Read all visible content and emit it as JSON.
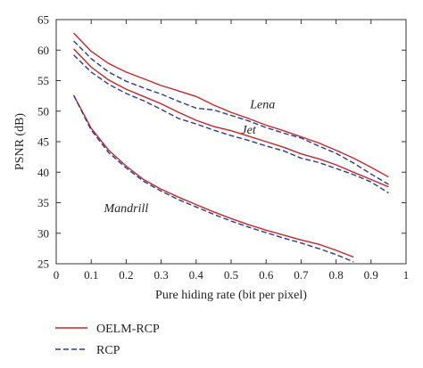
{
  "chart_data": {
    "type": "line",
    "xlabel": "Pure hiding rate (bit per pixel)",
    "ylabel": "PSNR (dB)",
    "xlim": [
      0,
      1
    ],
    "ylim": [
      25,
      65
    ],
    "xticks": [
      "0",
      "0.1",
      "0.2",
      "0.3",
      "0.4",
      "0.5",
      "0.6",
      "0.7",
      "0.8",
      "0.9",
      "1"
    ],
    "yticks": [
      "25",
      "30",
      "35",
      "40",
      "45",
      "50",
      "55",
      "60",
      "65"
    ],
    "grid": false,
    "legend_position": "bottom-left",
    "legend": [
      {
        "name": "OELM-RCP",
        "color": "#c0282d",
        "dash": "solid"
      },
      {
        "name": "RCP",
        "color": "#2b3a8f",
        "dash": "dashed"
      }
    ],
    "annotations": [
      {
        "text": "Lena",
        "x": 0.59,
        "y": 50.5
      },
      {
        "text": "Jet",
        "x": 0.55,
        "y": 46.3
      },
      {
        "text": "Mandrill",
        "x": 0.2,
        "y": 33.5
      }
    ],
    "series": [
      {
        "group": "Lena",
        "name": "OELM-RCP",
        "x": [
          0.05,
          0.1,
          0.15,
          0.2,
          0.25,
          0.3,
          0.35,
          0.4,
          0.45,
          0.5,
          0.55,
          0.6,
          0.65,
          0.7,
          0.75,
          0.8,
          0.85,
          0.9,
          0.95
        ],
        "y": [
          62.8,
          59.8,
          57.8,
          56.4,
          55.3,
          54.2,
          53.3,
          52.4,
          51.0,
          49.8,
          48.8,
          47.7,
          46.8,
          45.8,
          44.8,
          43.6,
          42.3,
          40.8,
          39.2
        ]
      },
      {
        "group": "Lena",
        "name": "RCP",
        "x": [
          0.05,
          0.1,
          0.15,
          0.2,
          0.25,
          0.3,
          0.35,
          0.4,
          0.45,
          0.5,
          0.55,
          0.6,
          0.65,
          0.7,
          0.75,
          0.8,
          0.85,
          0.9,
          0.95
        ],
        "y": [
          61.5,
          58.6,
          56.4,
          54.9,
          53.8,
          52.8,
          51.6,
          50.5,
          50.2,
          49.3,
          48.4,
          47.3,
          46.4,
          45.6,
          44.3,
          43.1,
          41.5,
          39.7,
          38.0
        ]
      },
      {
        "group": "Jet",
        "name": "OELM-RCP",
        "x": [
          0.05,
          0.1,
          0.15,
          0.2,
          0.25,
          0.3,
          0.35,
          0.4,
          0.45,
          0.5,
          0.55,
          0.6,
          0.65,
          0.7,
          0.75,
          0.8,
          0.85,
          0.9,
          0.95
        ],
        "y": [
          60.2,
          57.2,
          55.1,
          53.6,
          52.4,
          51.2,
          49.8,
          48.5,
          47.5,
          46.8,
          45.9,
          45.0,
          44.1,
          43.0,
          42.2,
          41.2,
          40.0,
          38.8,
          37.6
        ]
      },
      {
        "group": "Jet",
        "name": "RCP",
        "x": [
          0.05,
          0.1,
          0.15,
          0.2,
          0.25,
          0.3,
          0.35,
          0.4,
          0.45,
          0.5,
          0.55,
          0.6,
          0.65,
          0.7,
          0.75,
          0.8,
          0.85,
          0.9,
          0.95
        ],
        "y": [
          59.2,
          56.4,
          54.4,
          52.9,
          51.7,
          50.3,
          48.8,
          47.9,
          46.9,
          46.0,
          45.2,
          44.3,
          43.5,
          42.3,
          41.6,
          40.6,
          39.6,
          38.4,
          36.6
        ]
      },
      {
        "group": "Mandrill",
        "name": "OELM-RCP",
        "x": [
          0.05,
          0.1,
          0.15,
          0.2,
          0.25,
          0.3,
          0.35,
          0.4,
          0.45,
          0.5,
          0.55,
          0.6,
          0.65,
          0.7,
          0.75,
          0.8,
          0.85
        ],
        "y": [
          52.6,
          47.2,
          43.6,
          41.0,
          38.8,
          37.2,
          35.9,
          34.7,
          33.5,
          32.4,
          31.4,
          30.5,
          29.7,
          28.9,
          28.2,
          27.2,
          26.1
        ]
      },
      {
        "group": "Mandrill",
        "name": "RCP",
        "x": [
          0.05,
          0.1,
          0.15,
          0.2,
          0.25,
          0.3,
          0.35,
          0.4,
          0.45,
          0.5,
          0.55,
          0.6,
          0.65,
          0.7,
          0.75,
          0.8,
          0.85
        ],
        "y": [
          52.6,
          46.9,
          43.2,
          40.7,
          38.5,
          36.9,
          35.5,
          34.3,
          33.1,
          32.0,
          31.0,
          30.1,
          29.2,
          28.4,
          27.5,
          26.5,
          25.3
        ]
      }
    ]
  }
}
